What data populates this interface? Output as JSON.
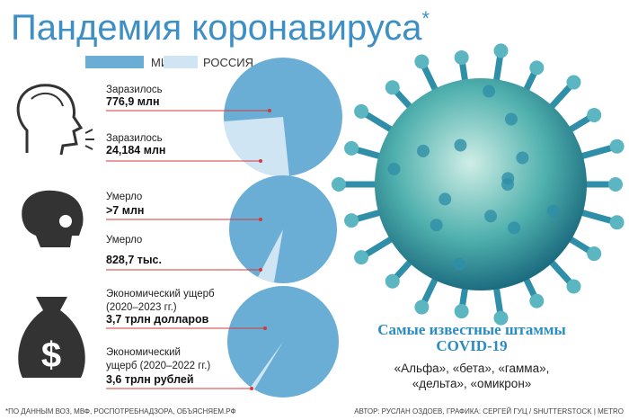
{
  "title": "Пандемия коронавируса",
  "title_note": "*",
  "legend": [
    "МИР",
    "РОССИЯ"
  ],
  "rows": [
    {
      "label": [
        "Заразилось"
      ],
      "value": "776,9 млн"
    },
    {
      "label": [
        "Заразилось"
      ],
      "value": "24,184 млн"
    },
    {
      "label": [
        "Умерло"
      ],
      "value": ">7 млн"
    },
    {
      "label": [
        "Умерло"
      ],
      "value": "828,7 тыс."
    },
    {
      "label": [
        "Экономический ущерб",
        "(2020–2023 гг.)"
      ],
      "value": "3,7 трлн долларов"
    },
    {
      "label": [
        "Экономический",
        "ущерб (2020–2022 гг.)"
      ],
      "value": "3,6 трлн рублей"
    }
  ],
  "strains": {
    "title": [
      "Самые известные штаммы",
      "COVID-19"
    ],
    "items": [
      "«Альфа», «бета», «гамма»,",
      "«дельта», «омикрон»"
    ]
  },
  "footer": {
    "source": "*ПО ДАННЫМ ВОЗ, МВФ, РОСПОТРЕБНАДЗОРА, ОБЪЯСНЯЕМ.РФ",
    "credits": "АВТОР: РУСЛАН ОЗДОЕВ, ГРАФИКА: СЕРГЕЙ ГУЦ / SHUTTERSTOCK | METRO"
  }
}
